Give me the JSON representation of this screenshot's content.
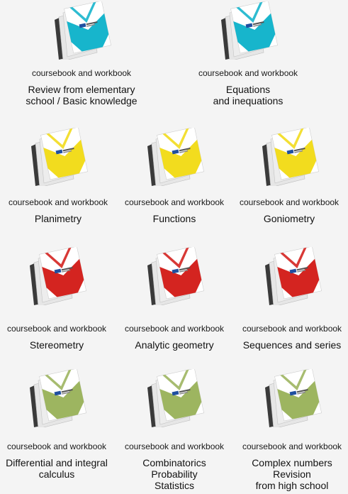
{
  "sections": [
    {
      "color": "#17b5cc",
      "items": [
        {
          "subtitle": "coursebook and workbook",
          "title_lines": [
            "Review from elementary",
            "school / Basic knowledge"
          ]
        },
        {
          "subtitle": "coursebook and workbook",
          "title_lines": [
            "Equations",
            "and inequations"
          ]
        }
      ]
    },
    {
      "color": "#f2dc1e",
      "items": [
        {
          "subtitle": "coursebook and workbook",
          "title_lines": [
            "Planimetry"
          ]
        },
        {
          "subtitle": "coursebook and workbook",
          "title_lines": [
            "Functions"
          ]
        },
        {
          "subtitle": "coursebook and workbook",
          "title_lines": [
            "Goniometry"
          ]
        }
      ]
    },
    {
      "color": "#d42420",
      "items": [
        {
          "subtitle": "coursebook and workbook",
          "title_lines": [
            "Stereometry"
          ]
        },
        {
          "subtitle": "coursebook and workbook",
          "title_lines": [
            "Analytic geometry"
          ]
        },
        {
          "subtitle": "coursebook and workbook",
          "title_lines": [
            "Sequences and series"
          ]
        }
      ]
    },
    {
      "color": "#9db560",
      "items": [
        {
          "subtitle": "coursebook and workbook",
          "title_lines": [
            "Differential and integral",
            "calculus"
          ]
        },
        {
          "subtitle": "coursebook and workbook",
          "title_lines": [
            "Combinatorics",
            "Probability",
            "Statistics"
          ]
        },
        {
          "subtitle": "coursebook and workbook",
          "title_lines": [
            "Complex numbers",
            "Revision",
            "from high school"
          ]
        }
      ]
    }
  ]
}
